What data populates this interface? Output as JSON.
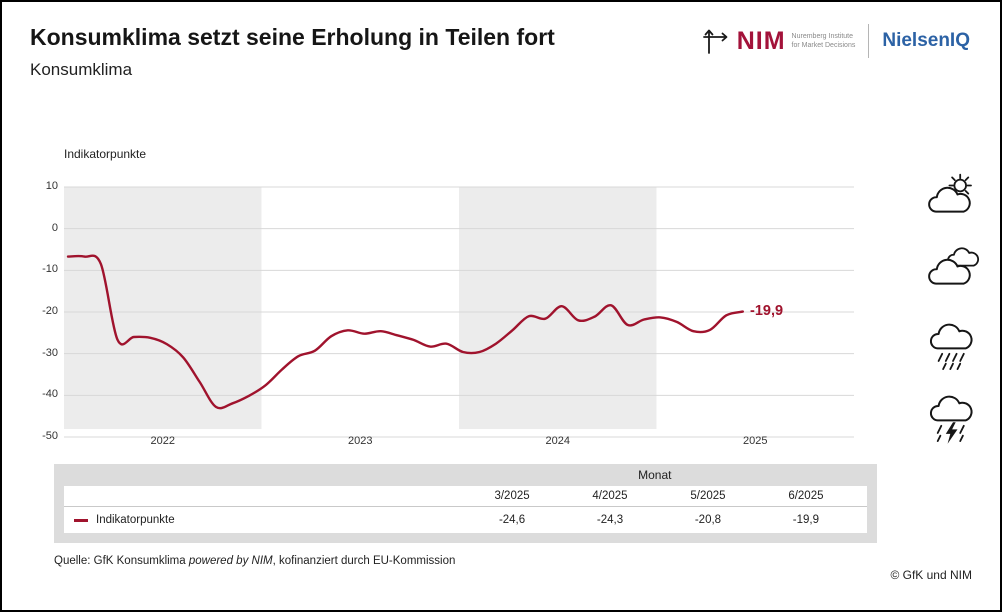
{
  "header": {
    "title": "Konsumklima setzt seine Erholung in Teilen fort",
    "subtitle": "Konsumklima"
  },
  "logos": {
    "nim": "NIM",
    "nim_tagline_1": "Nuremberg Institute",
    "nim_tagline_2": "for Market Decisions",
    "nielseniq": "NielsenIQ"
  },
  "colors": {
    "line": "#a0132d",
    "nim_red": "#a3123a",
    "nielseniq_blue": "#2c62a5",
    "band": "#ececec"
  },
  "chart_data": {
    "type": "line",
    "ylabel": "Indikatorpunkte",
    "ylim": [
      -50,
      10
    ],
    "yticks": [
      10,
      0,
      -10,
      -20,
      -30,
      -40,
      -50
    ],
    "years": [
      "2022",
      "2023",
      "2024",
      "2025"
    ],
    "shaded_years": [
      0,
      2
    ],
    "band_color": "#ececec",
    "x_range": "1/2022 - 6/2025 (monatlich)",
    "series": [
      {
        "name": "Indikatorpunkte",
        "color": "#a0132d",
        "values": [
          -6.7,
          -6.7,
          -8.5,
          -26.6,
          -26.0,
          -26.2,
          -27.7,
          -30.9,
          -36.8,
          -42.8,
          -41.9,
          -40.1,
          -37.6,
          -33.8,
          -30.6,
          -29.3,
          -25.8,
          -24.4,
          -25.2,
          -24.6,
          -25.6,
          -26.7,
          -28.3,
          -27.6,
          -29.6,
          -29.6,
          -27.6,
          -24.4,
          -21.0,
          -21.6,
          -18.6,
          -22.0,
          -21.1,
          -18.4,
          -23.1,
          -21.8,
          -21.3,
          -22.4,
          -24.6,
          -24.3,
          -20.8,
          -19.9
        ]
      }
    ],
    "last_value_label": "-19,9"
  },
  "weather": {
    "icons": [
      "sun-behind-cloud",
      "cloudy",
      "rain",
      "thunderstorm"
    ]
  },
  "table": {
    "group_header": "Monat",
    "columns": [
      "3/2025",
      "4/2025",
      "5/2025",
      "6/2025"
    ],
    "rows": [
      {
        "label": "Indikatorpunkte",
        "values": [
          "-24,6",
          "-24,3",
          "-20,8",
          "-19,9"
        ]
      }
    ]
  },
  "footer": {
    "source_prefix": "Quelle: GfK Konsumklima ",
    "source_italic": "powered by NIM",
    "source_suffix": ", kofinanziert durch EU-Kommission",
    "copyright": "© GfK und NIM"
  }
}
